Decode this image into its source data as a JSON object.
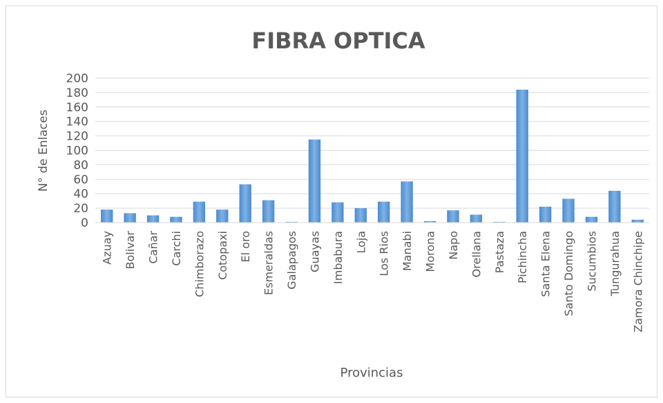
{
  "chart_data": {
    "type": "bar",
    "title": "FIBRA OPTICA",
    "x_label": "Provincias",
    "y_label": "N° de Enlaces",
    "categories": [
      "Azuay",
      "Bolivar",
      "Cañar",
      "Carchi",
      "Chimborazo",
      "Cotopaxi",
      "El oro",
      "Esmeraldas",
      "Galapagos",
      "Guayas",
      "Imbabura",
      "Loja",
      "Los Rios",
      "Manabi",
      "Morona",
      "Napo",
      "Orellana",
      "Pastaza",
      "Pichincha",
      "Santa Elena",
      "Santo Domingo",
      "Sucumbios",
      "Tungurahua",
      "Zamora Chinchipe"
    ],
    "values": [
      18,
      13,
      10,
      8,
      29,
      18,
      53,
      31,
      1,
      115,
      28,
      20,
      29,
      57,
      2,
      17,
      11,
      1,
      184,
      22,
      33,
      8,
      44,
      4
    ],
    "color": "#5b9bd5",
    "ylim": [
      0,
      200
    ],
    "yticks": [
      0,
      20,
      40,
      60,
      80,
      100,
      120,
      140,
      160,
      180,
      200
    ],
    "grid": true
  }
}
